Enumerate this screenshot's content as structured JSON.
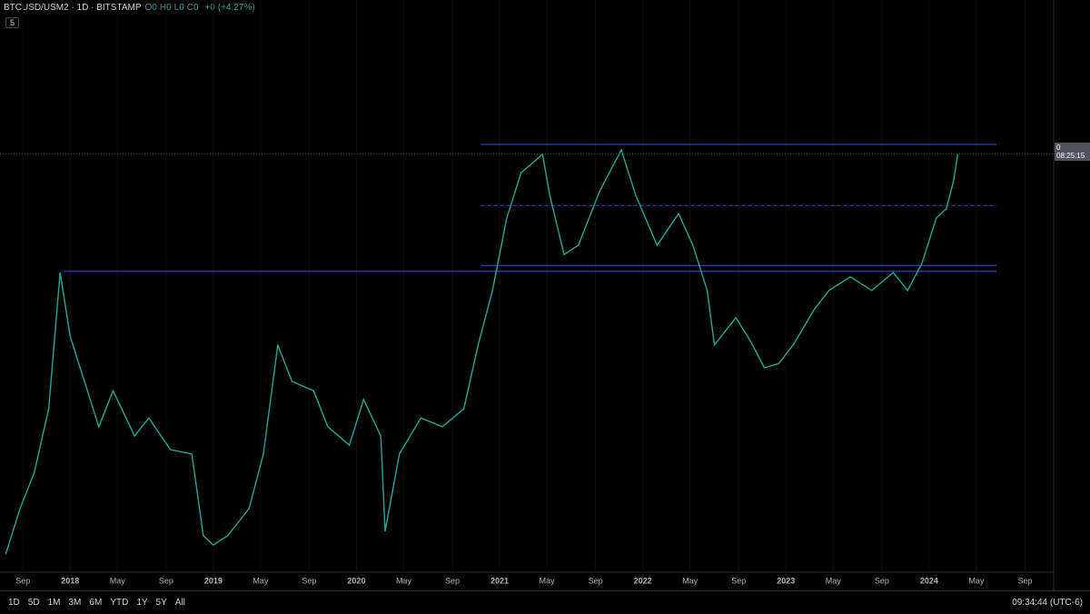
{
  "header": {
    "symbol": "BTCUSD/USM2 · 1D · BITSTAMP",
    "ohlc": [
      {
        "key": "O",
        "value": "0"
      },
      {
        "key": "H",
        "value": "0"
      },
      {
        "key": "L",
        "value": "0"
      },
      {
        "key": "C",
        "value": "0"
      }
    ],
    "change": "+0 (+4.27%)",
    "indicator": "5"
  },
  "chart_data": {
    "type": "line",
    "color": "#26a69a",
    "x": [
      2017.55,
      2017.65,
      2017.75,
      2017.85,
      2017.93,
      2018.0,
      2018.1,
      2018.2,
      2018.3,
      2018.45,
      2018.55,
      2018.7,
      2018.85,
      2018.93,
      2019.0,
      2019.1,
      2019.25,
      2019.35,
      2019.45,
      2019.55,
      2019.7,
      2019.8,
      2019.95,
      2020.05,
      2020.17,
      2020.2,
      2020.3,
      2020.45,
      2020.6,
      2020.75,
      2020.85,
      2020.95,
      2021.05,
      2021.15,
      2021.3,
      2021.35,
      2021.45,
      2021.55,
      2021.7,
      2021.85,
      2021.95,
      2022.1,
      2022.25,
      2022.35,
      2022.45,
      2022.5,
      2022.65,
      2022.75,
      2022.85,
      2022.95,
      2023.05,
      2023.2,
      2023.3,
      2023.45,
      2023.6,
      2023.75,
      2023.85,
      2023.95,
      2024.05,
      2024.12,
      2024.17,
      2024.2
    ],
    "series": [
      {
        "name": "BTCUSD/USM2",
        "color": "#26a69a",
        "values": [
          3.3,
          11.7,
          18.3,
          30,
          55,
          43.3,
          35,
          26.7,
          33.3,
          25,
          28.3,
          22.5,
          21.7,
          6.7,
          5,
          6.7,
          11.7,
          21.7,
          41.7,
          35,
          33.3,
          26.7,
          23.3,
          31.7,
          25,
          7.5,
          21.7,
          28.3,
          26.7,
          30,
          41.7,
          51.7,
          65,
          73.3,
          76.7,
          69.2,
          58.3,
          60,
          70,
          77.5,
          69.2,
          60,
          65.8,
          60,
          51.7,
          41.7,
          46.7,
          42.5,
          37.5,
          38.3,
          41.7,
          48.3,
          51.7,
          54.2,
          51.7,
          55,
          51.7,
          56.7,
          65,
          66.7,
          71.7,
          76.7
        ]
      }
    ],
    "xlim": [
      2017.51,
      2024.87
    ],
    "ylim": [
      0,
      100
    ],
    "xticks": [
      {
        "value": 2017.67,
        "label": "Sep"
      },
      2018,
      {
        "value": 2018.33,
        "label": "May"
      },
      {
        "value": 2018.67,
        "label": "Sep"
      },
      2019,
      {
        "value": 2019.33,
        "label": "May"
      },
      {
        "value": 2019.67,
        "label": "Sep"
      },
      2020,
      {
        "value": 2020.33,
        "label": "May"
      },
      {
        "value": 2020.67,
        "label": "Sep"
      },
      2021,
      {
        "value": 2021.33,
        "label": "May"
      },
      {
        "value": 2021.67,
        "label": "Sep"
      },
      2022,
      {
        "value": 2022.33,
        "label": "May"
      },
      {
        "value": 2022.67,
        "label": "Sep"
      },
      2023,
      {
        "value": 2023.33,
        "label": "May"
      },
      {
        "value": 2023.67,
        "label": "Sep"
      },
      2024,
      {
        "value": 2024.33,
        "label": "May"
      },
      {
        "value": 2024.67,
        "label": "Sep"
      }
    ],
    "hlines": [
      {
        "value": 78.5,
        "from": 2020.87,
        "to": 2024.47,
        "dashed": false
      },
      {
        "value": 67.3,
        "from": 2020.87,
        "to": 2024.47,
        "dashed": true
      },
      {
        "value": 56.3,
        "from": 2020.87,
        "to": 2024.47,
        "dashed": false
      },
      {
        "value": 55.2,
        "from": 2017.955,
        "to": 2024.47,
        "dashed": false
      }
    ],
    "hline_color": "#3f4fd8"
  },
  "price_tag": {
    "price": "0",
    "countdown": "08:25:15"
  },
  "toolbar": {
    "ranges": [
      "1D",
      "5D",
      "1M",
      "3M",
      "6M",
      "YTD",
      "1Y",
      "5Y",
      "All"
    ],
    "clock": "09:34:44 (UTC-6)"
  }
}
